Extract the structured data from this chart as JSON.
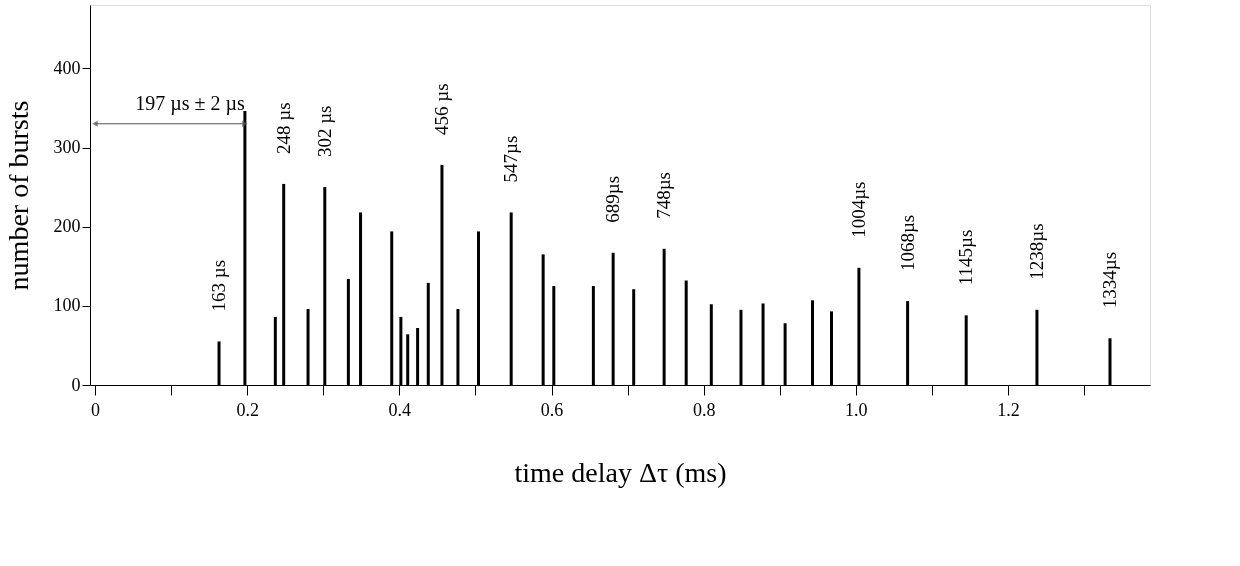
{
  "chart_data": {
    "type": "bar",
    "xlabel": "time delay Δτ (ms)",
    "ylabel": "number of bursts",
    "x": [
      0.163,
      0.197,
      0.237,
      0.248,
      0.28,
      0.302,
      0.333,
      0.349,
      0.39,
      0.402,
      0.411,
      0.424,
      0.438,
      0.456,
      0.477,
      0.504,
      0.547,
      0.589,
      0.603,
      0.655,
      0.681,
      0.708,
      0.748,
      0.777,
      0.81,
      0.849,
      0.878,
      0.907,
      0.943,
      0.968,
      1.004,
      1.068,
      1.145,
      1.238,
      1.334
    ],
    "values": [
      55,
      346,
      86,
      254,
      96,
      250,
      134,
      218,
      194,
      86,
      64,
      72,
      129,
      278,
      96,
      194,
      218,
      165,
      125,
      125,
      167,
      121,
      172,
      132,
      102,
      95,
      103,
      78,
      107,
      93,
      148,
      106,
      88,
      95,
      59
    ],
    "color": "#000000",
    "xlim": [
      0,
      1.38
    ],
    "xticks": [
      0,
      {
        "value": 0.1,
        "label": null
      },
      0.2,
      {
        "value": 0.3,
        "label": null
      },
      0.4,
      {
        "value": 0.5,
        "label": null
      },
      0.6,
      {
        "value": 0.7,
        "label": null
      },
      0.8,
      {
        "value": 0.9,
        "label": null
      },
      {
        "value": 1.0,
        "label": "1.0"
      },
      {
        "value": 1.1,
        "label": null
      },
      1.2,
      {
        "value": 1.3,
        "label": null
      }
    ],
    "ylim": [
      0,
      480
    ],
    "yticks": [
      0,
      100,
      200,
      300,
      400
    ],
    "grid": false,
    "annotations": [
      {
        "text": "197 µs ± 2 µs",
        "x": 0.197,
        "y": 330
      },
      {
        "text": "163 µs",
        "x": 0.163,
        "y": 55
      },
      {
        "text": "248 µs",
        "x": 0.248,
        "y": 254
      },
      {
        "text": "302 µs",
        "x": 0.302,
        "y": 250
      },
      {
        "text": "456 µs",
        "x": 0.456,
        "y": 278
      },
      {
        "text": "547µs",
        "x": 0.547,
        "y": 218
      },
      {
        "text": "689µs",
        "x": 0.681,
        "y": 167
      },
      {
        "text": "748µs",
        "x": 0.748,
        "y": 172
      },
      {
        "text": "1004µs",
        "x": 1.004,
        "y": 148
      },
      {
        "text": "1068µs",
        "x": 1.068,
        "y": 106
      },
      {
        "text": "1145µs",
        "x": 1.145,
        "y": 88
      },
      {
        "text": "1238µs",
        "x": 1.238,
        "y": 95
      },
      {
        "text": "1334µs",
        "x": 1.334,
        "y": 59
      }
    ]
  }
}
